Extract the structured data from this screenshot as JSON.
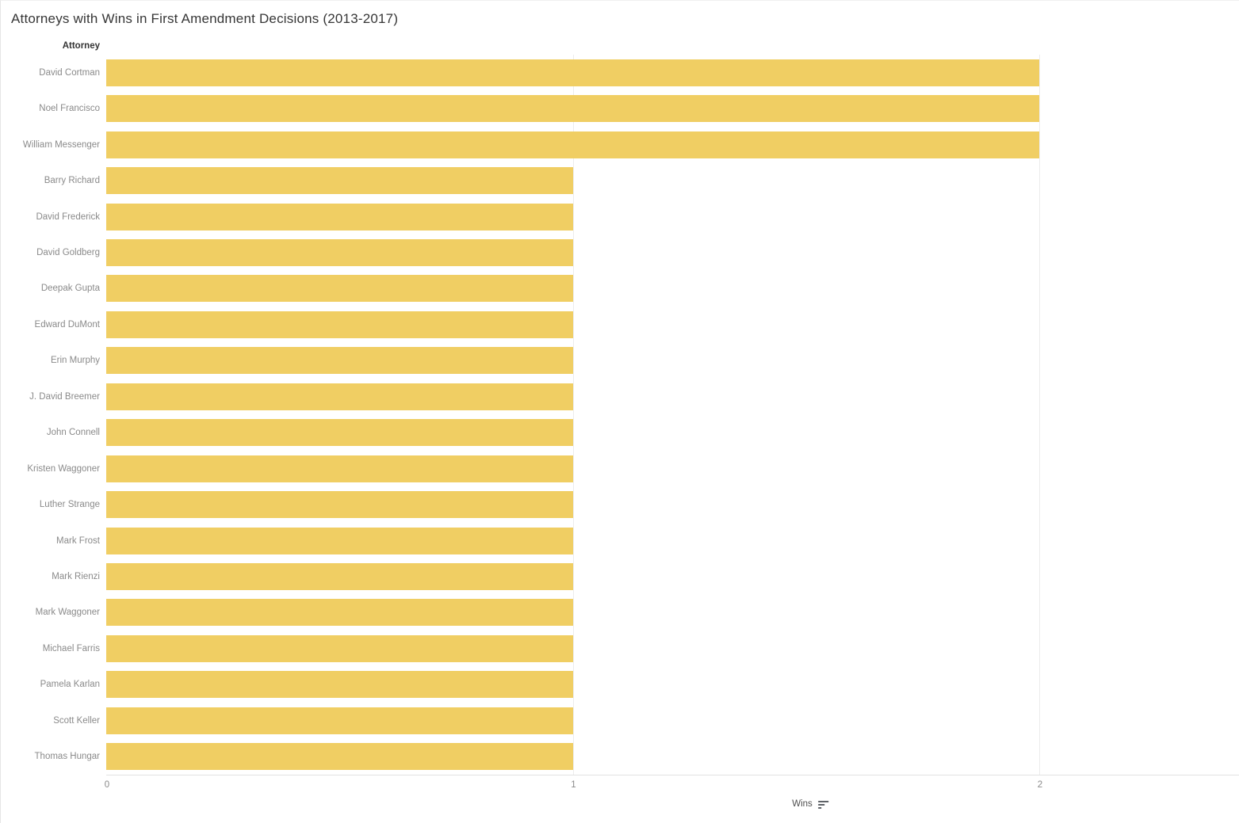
{
  "title": "Attorneys with Wins in First Amendment Decisions (2013-2017)",
  "row_header": "Attorney",
  "axis": {
    "label": "Wins",
    "sort_icon": "sort-descending-icon",
    "ticks": [
      "0",
      "1",
      "2"
    ]
  },
  "colors": {
    "bar": "#f0ce63",
    "gridline": "#ececec",
    "axis_line": "#e1e1e1",
    "title_text": "#363636",
    "label_text": "#8a8a8a"
  },
  "chart_data": {
    "type": "bar",
    "orientation": "horizontal",
    "title": "Attorneys with Wins in First Amendment Decisions (2013-2017)",
    "xlabel": "Wins",
    "ylabel": "Attorney",
    "xlim": [
      0,
      2.43
    ],
    "x_ticks": [
      0,
      1,
      2
    ],
    "grid": "vertical-light",
    "legend": "none",
    "sort": "descending-by-wins",
    "categories": [
      "David Cortman",
      "Noel Francisco",
      "William Messenger",
      "Barry Richard",
      "David Frederick",
      "David Goldberg",
      "Deepak Gupta",
      "Edward DuMont",
      "Erin Murphy",
      "J. David Breemer",
      "John Connell",
      "Kristen Waggoner",
      "Luther Strange",
      "Mark Frost",
      "Mark Rienzi",
      "Mark Waggoner",
      "Michael Farris",
      "Pamela Karlan",
      "Scott Keller",
      "Thomas Hungar"
    ],
    "values": [
      2,
      2,
      2,
      1,
      1,
      1,
      1,
      1,
      1,
      1,
      1,
      1,
      1,
      1,
      1,
      1,
      1,
      1,
      1,
      1
    ]
  }
}
